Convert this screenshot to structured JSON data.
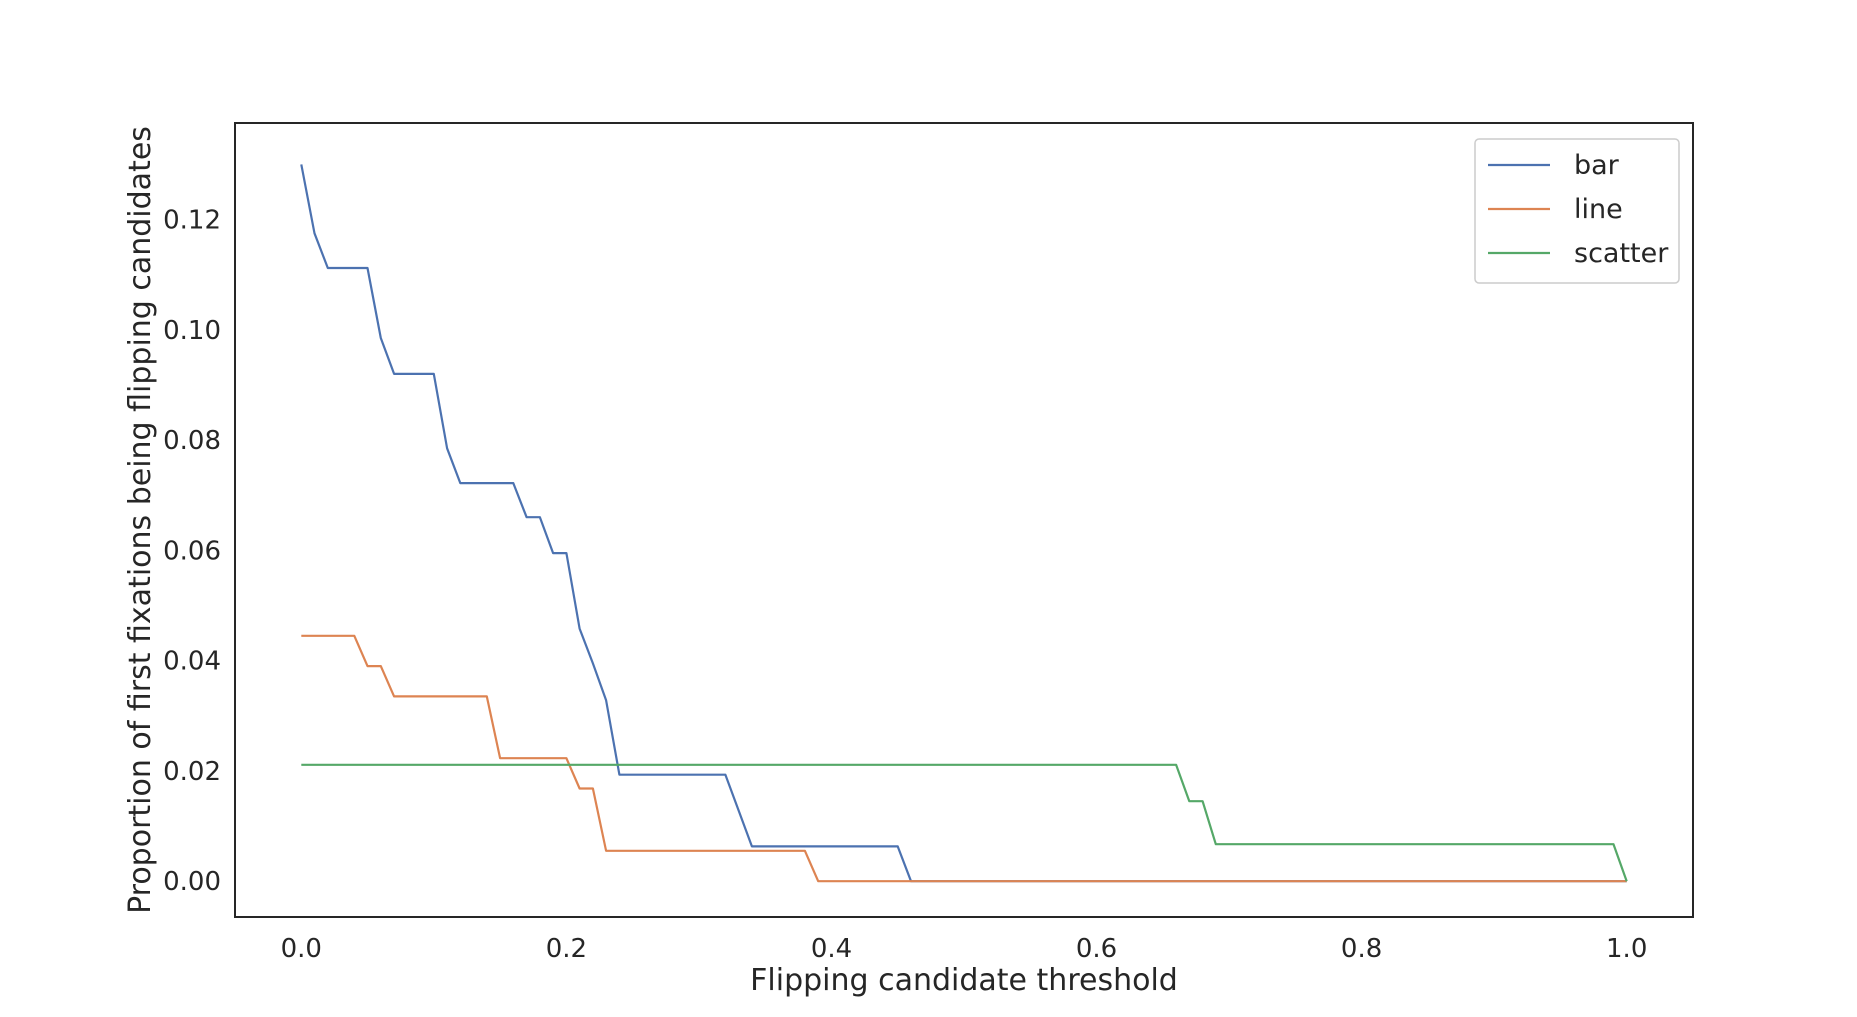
{
  "chart_data": {
    "type": "line",
    "title": "",
    "xlabel": "Flipping candidate threshold",
    "ylabel": "Proportion of first fixations being flipping candidates",
    "xlim": [
      -0.05,
      1.05
    ],
    "ylim": [
      -0.0065,
      0.1375
    ],
    "xticks": [
      0.0,
      0.2,
      0.4,
      0.6,
      0.8,
      1.0
    ],
    "xtick_labels": [
      "0.0",
      "0.2",
      "0.4",
      "0.6",
      "0.8",
      "1.0"
    ],
    "yticks": [
      0.0,
      0.02,
      0.04,
      0.06,
      0.08,
      0.1,
      0.12
    ],
    "ytick_labels": [
      "0.00",
      "0.02",
      "0.04",
      "0.06",
      "0.08",
      "0.10",
      "0.12"
    ],
    "grid": false,
    "legend": "top-right",
    "series": [
      {
        "name": "bar",
        "color": "#4c72b0",
        "points": [
          [
            0.0,
            0.13
          ],
          [
            0.01,
            0.1175
          ],
          [
            0.02,
            0.1112
          ],
          [
            0.05,
            0.1112
          ],
          [
            0.06,
            0.0985
          ],
          [
            0.07,
            0.092
          ],
          [
            0.1,
            0.092
          ],
          [
            0.11,
            0.0785
          ],
          [
            0.12,
            0.0722
          ],
          [
            0.16,
            0.0722
          ],
          [
            0.17,
            0.066
          ],
          [
            0.18,
            0.066
          ],
          [
            0.19,
            0.0595
          ],
          [
            0.2,
            0.0595
          ],
          [
            0.21,
            0.0458
          ],
          [
            0.22,
            0.0395
          ],
          [
            0.23,
            0.0328
          ],
          [
            0.24,
            0.0193
          ],
          [
            0.32,
            0.0193
          ],
          [
            0.34,
            0.0063
          ],
          [
            0.45,
            0.0063
          ],
          [
            0.46,
            0.0
          ],
          [
            1.0,
            0.0
          ]
        ]
      },
      {
        "name": "line",
        "color": "#dd8452",
        "points": [
          [
            0.0,
            0.0445
          ],
          [
            0.04,
            0.0445
          ],
          [
            0.05,
            0.039
          ],
          [
            0.06,
            0.039
          ],
          [
            0.07,
            0.0335
          ],
          [
            0.14,
            0.0335
          ],
          [
            0.15,
            0.0223
          ],
          [
            0.2,
            0.0223
          ],
          [
            0.21,
            0.0168
          ],
          [
            0.22,
            0.0168
          ],
          [
            0.23,
            0.0055
          ],
          [
            0.38,
            0.0055
          ],
          [
            0.39,
            0.0
          ],
          [
            1.0,
            0.0
          ]
        ]
      },
      {
        "name": "scatter",
        "color": "#55a868",
        "points": [
          [
            0.0,
            0.0211
          ],
          [
            0.66,
            0.0211
          ],
          [
            0.67,
            0.0145
          ],
          [
            0.68,
            0.0145
          ],
          [
            0.69,
            0.0067
          ],
          [
            0.99,
            0.0067
          ],
          [
            1.0,
            0.0
          ]
        ]
      }
    ]
  }
}
